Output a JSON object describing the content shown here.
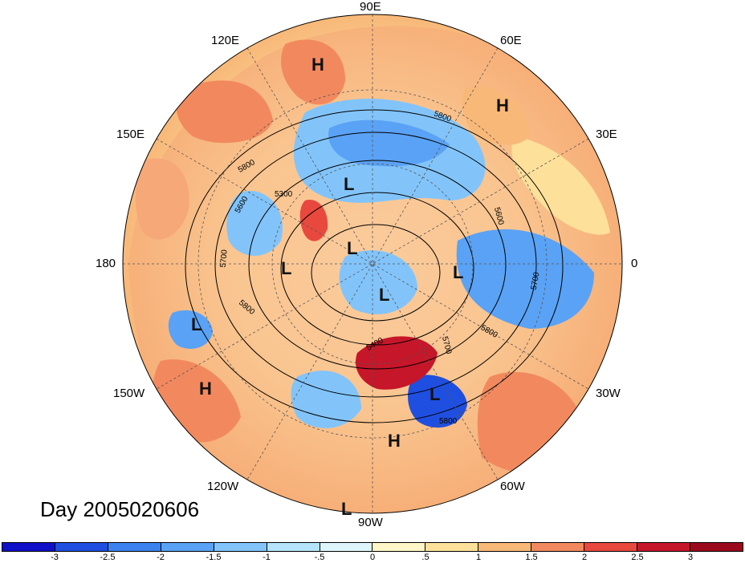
{
  "title": "Day 2005020606",
  "longitude_labels": {
    "e90": "90E",
    "e120": "120E",
    "e60": "60E",
    "e150": "150E",
    "e30": "30E",
    "w180": "180",
    "zero": "0",
    "w150": "150W",
    "w30": "30W",
    "w120": "120W",
    "w60": "60W",
    "w90": "90W"
  },
  "pressure_centers": [
    {
      "type": "H"
    },
    {
      "type": "H"
    },
    {
      "type": "L"
    },
    {
      "type": "L"
    },
    {
      "type": "L"
    },
    {
      "type": "L"
    },
    {
      "type": "L"
    },
    {
      "type": "L"
    },
    {
      "type": "H"
    },
    {
      "type": "L"
    },
    {
      "type": "H"
    },
    {
      "type": "L"
    }
  ],
  "contour_labels": [
    "5800",
    "5300",
    "5600",
    "5700",
    "5800",
    "5600",
    "5700",
    "5800",
    "5400",
    "5700",
    "5800",
    "5800"
  ],
  "colorbar": {
    "ticks": [
      "-3",
      "-2.5",
      "-2",
      "-1.5",
      "-1",
      "-.5",
      "0",
      ".5",
      "1",
      "1.5",
      "2",
      "2.5",
      "3"
    ],
    "colors": [
      "#1010c8",
      "#1f4fe0",
      "#3c82ef",
      "#5aa2f5",
      "#82c4fa",
      "#b5e3fc",
      "#dff5fc",
      "#fff6c8",
      "#fde09a",
      "#f8b878",
      "#f2895e",
      "#e8483e",
      "#c6162a",
      "#9b0a1c"
    ]
  }
}
